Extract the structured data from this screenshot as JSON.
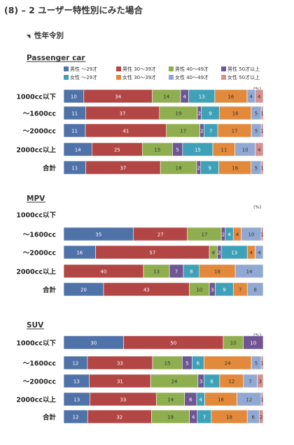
{
  "page": {
    "title": "(8) – 2 ユーザー特性別にみた場合",
    "section": "性年令別"
  },
  "legend": [
    {
      "label": "男性 ～29才",
      "color": "#4f72a8"
    },
    {
      "label": "男性 30～39才",
      "color": "#b24644"
    },
    {
      "label": "男性 40～49才",
      "color": "#8fae4f"
    },
    {
      "label": "男性 50才以上",
      "color": "#6f5593"
    },
    {
      "label": "女性 ～29才",
      "color": "#3fa1b8"
    },
    {
      "label": "女性 30～39才",
      "color": "#e2893b"
    },
    {
      "label": "女性 40～49才",
      "color": "#91a9d2"
    },
    {
      "label": "女性 50才以上",
      "color": "#d5918f"
    }
  ],
  "chart_data": [
    {
      "type": "bar",
      "stacked": true,
      "orientation": "horizontal",
      "title": "Passenger car",
      "unit": "(%)",
      "categories": [
        "1000cc以下",
        "～1600cc",
        "～2000cc",
        "2000cc以上",
        "合計"
      ],
      "series": [
        {
          "name": "男性 ～29才",
          "values": [
            10,
            11,
            11,
            14,
            11
          ]
        },
        {
          "name": "男性 30～39才",
          "values": [
            34,
            37,
            41,
            25,
            37
          ]
        },
        {
          "name": "男性 40～49才",
          "values": [
            14,
            19,
            17,
            15,
            18
          ]
        },
        {
          "name": "男性 50才以上",
          "values": [
            4,
            2,
            2,
            5,
            2
          ]
        },
        {
          "name": "女性 ～29才",
          "values": [
            13,
            9,
            7,
            15,
            9
          ]
        },
        {
          "name": "女性 30～39才",
          "values": [
            16,
            16,
            17,
            11,
            16
          ]
        },
        {
          "name": "女性 40～49才",
          "values": [
            4,
            5,
            5,
            10,
            5
          ]
        },
        {
          "name": "女性 50才以上",
          "values": [
            4,
            1,
            1,
            4,
            1
          ]
        }
      ]
    },
    {
      "type": "bar",
      "stacked": true,
      "orientation": "horizontal",
      "title": "MPV",
      "unit": "(%)",
      "categories": [
        "1000cc以下",
        "～1600cc",
        "～2000cc",
        "2000cc以上",
        "合計"
      ],
      "series": [
        {
          "name": "男性 ～29才",
          "values": [
            null,
            35,
            16,
            0,
            20
          ]
        },
        {
          "name": "男性 30～39才",
          "values": [
            null,
            27,
            57,
            40,
            43
          ]
        },
        {
          "name": "男性 40～49才",
          "values": [
            null,
            17,
            4,
            13,
            10
          ]
        },
        {
          "name": "男性 50才以上",
          "values": [
            null,
            2,
            2,
            7,
            3
          ]
        },
        {
          "name": "女性 ～29才",
          "values": [
            null,
            4,
            13,
            8,
            9
          ]
        },
        {
          "name": "女性 30～39才",
          "values": [
            null,
            4,
            4,
            18,
            7
          ]
        },
        {
          "name": "女性 40～49才",
          "values": [
            null,
            10,
            4,
            14,
            8
          ]
        },
        {
          "name": "女性 50才以上",
          "values": [
            null,
            1,
            0,
            0,
            0
          ]
        }
      ]
    },
    {
      "type": "bar",
      "stacked": true,
      "orientation": "horizontal",
      "title": "SUV",
      "unit": "(%)",
      "categories": [
        "1000cc以下",
        "～1600cc",
        "～2000cc",
        "2000cc以上",
        "合計"
      ],
      "series": [
        {
          "name": "男性 ～29才",
          "values": [
            30,
            12,
            13,
            13,
            12
          ]
        },
        {
          "name": "男性 30～39才",
          "values": [
            50,
            33,
            31,
            33,
            32
          ]
        },
        {
          "name": "男性 40～49才",
          "values": [
            10,
            15,
            24,
            14,
            19
          ]
        },
        {
          "name": "男性 50才以上",
          "values": [
            10,
            5,
            3,
            6,
            4
          ]
        },
        {
          "name": "女性 ～29才",
          "values": [
            0,
            6,
            8,
            4,
            7
          ]
        },
        {
          "name": "女性 30～39才",
          "values": [
            0,
            24,
            12,
            16,
            18
          ]
        },
        {
          "name": "女性 40～49才",
          "values": [
            0,
            5,
            7,
            12,
            6
          ]
        },
        {
          "name": "女性 50才以上",
          "values": [
            0,
            1,
            3,
            1,
            2
          ]
        }
      ]
    }
  ]
}
